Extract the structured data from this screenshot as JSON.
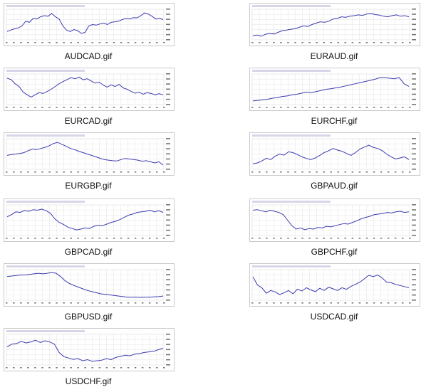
{
  "colors": {
    "line": "#3b3bb0",
    "grid": "#e3e3e3",
    "frame": "#c9c9c9",
    "axis_text": "#777777",
    "marker": "#2ea82e"
  },
  "thumbnails": [
    {
      "filename": "AUDCAD.gif",
      "series": [
        0.25,
        0.3,
        0.35,
        0.38,
        0.45,
        0.62,
        0.58,
        0.72,
        0.7,
        0.78,
        0.82,
        0.8,
        0.9,
        0.78,
        0.7,
        0.45,
        0.3,
        0.25,
        0.32,
        0.28,
        0.18,
        0.22,
        0.45,
        0.5,
        0.48,
        0.52,
        0.55,
        0.5,
        0.58,
        0.6,
        0.62,
        0.68,
        0.72,
        0.7,
        0.75,
        0.74,
        0.82,
        0.92,
        0.88,
        0.8,
        0.7,
        0.72,
        0.68
      ]
    },
    {
      "filename": "EURAUD.gif",
      "series": [
        0.1,
        0.12,
        0.08,
        0.15,
        0.18,
        0.16,
        0.22,
        0.28,
        0.3,
        0.33,
        0.35,
        0.4,
        0.45,
        0.43,
        0.5,
        0.55,
        0.6,
        0.58,
        0.62,
        0.7,
        0.72,
        0.78,
        0.76,
        0.8,
        0.82,
        0.85,
        0.83,
        0.88,
        0.9,
        0.86,
        0.84,
        0.8,
        0.78,
        0.82,
        0.85,
        0.8,
        0.82,
        0.78
      ]
    },
    {
      "filename": "EURCAD.gif",
      "series": [
        0.9,
        0.85,
        0.7,
        0.6,
        0.4,
        0.3,
        0.22,
        0.3,
        0.38,
        0.35,
        0.42,
        0.5,
        0.6,
        0.7,
        0.78,
        0.85,
        0.92,
        0.88,
        0.94,
        0.84,
        0.88,
        0.8,
        0.72,
        0.76,
        0.65,
        0.58,
        0.66,
        0.6,
        0.68,
        0.55,
        0.5,
        0.42,
        0.36,
        0.4,
        0.32,
        0.38,
        0.35,
        0.3,
        0.34,
        0.3
      ]
    },
    {
      "filename": "EURCHF.gif",
      "series": [
        0.08,
        0.1,
        0.12,
        0.14,
        0.18,
        0.2,
        0.24,
        0.26,
        0.3,
        0.32,
        0.36,
        0.4,
        0.38,
        0.42,
        0.46,
        0.5,
        0.52,
        0.55,
        0.58,
        0.62,
        0.66,
        0.7,
        0.74,
        0.78,
        0.82,
        0.86,
        0.92,
        0.92,
        0.9,
        0.88,
        0.92,
        0.7,
        0.6
      ]
    },
    {
      "filename": "EURGBP.gif",
      "series": [
        0.45,
        0.48,
        0.5,
        0.52,
        0.55,
        0.62,
        0.68,
        0.66,
        0.7,
        0.74,
        0.8,
        0.88,
        0.92,
        0.85,
        0.78,
        0.7,
        0.66,
        0.6,
        0.55,
        0.5,
        0.45,
        0.4,
        0.35,
        0.3,
        0.28,
        0.26,
        0.25,
        0.3,
        0.34,
        0.32,
        0.3,
        0.28,
        0.24,
        0.26,
        0.22,
        0.18,
        0.22,
        0.1
      ]
    },
    {
      "filename": "GBPAUD.gif",
      "series": [
        0.15,
        0.18,
        0.25,
        0.35,
        0.3,
        0.42,
        0.5,
        0.46,
        0.58,
        0.55,
        0.48,
        0.4,
        0.34,
        0.3,
        0.36,
        0.45,
        0.55,
        0.62,
        0.7,
        0.64,
        0.6,
        0.52,
        0.45,
        0.55,
        0.68,
        0.75,
        0.82,
        0.74,
        0.7,
        0.62,
        0.5,
        0.4,
        0.32,
        0.36,
        0.4,
        0.3
      ]
    },
    {
      "filename": "GBPCAD.gif",
      "series": [
        0.62,
        0.7,
        0.8,
        0.78,
        0.85,
        0.82,
        0.88,
        0.86,
        0.9,
        0.84,
        0.75,
        0.55,
        0.42,
        0.35,
        0.25,
        0.2,
        0.15,
        0.18,
        0.22,
        0.2,
        0.28,
        0.32,
        0.3,
        0.36,
        0.42,
        0.46,
        0.52,
        0.6,
        0.68,
        0.72,
        0.78,
        0.8,
        0.82,
        0.86,
        0.8,
        0.84,
        0.78
      ]
    },
    {
      "filename": "GBPCHF.gif",
      "series": [
        0.86,
        0.88,
        0.84,
        0.8,
        0.86,
        0.82,
        0.78,
        0.7,
        0.5,
        0.3,
        0.18,
        0.22,
        0.16,
        0.2,
        0.18,
        0.24,
        0.22,
        0.28,
        0.26,
        0.3,
        0.34,
        0.38,
        0.36,
        0.42,
        0.48,
        0.55,
        0.6,
        0.64,
        0.7,
        0.72,
        0.74,
        0.78,
        0.76,
        0.8,
        0.82,
        0.78,
        0.8
      ]
    },
    {
      "filename": "GBPUSD.gif",
      "series": [
        0.8,
        0.82,
        0.84,
        0.86,
        0.86,
        0.88,
        0.9,
        0.92,
        0.9,
        0.92,
        0.95,
        0.92,
        0.8,
        0.65,
        0.55,
        0.48,
        0.42,
        0.36,
        0.3,
        0.26,
        0.22,
        0.18,
        0.16,
        0.14,
        0.12,
        0.1,
        0.08,
        0.06,
        0.06,
        0.06,
        0.05,
        0.06,
        0.06,
        0.07,
        0.08,
        0.1
      ]
    },
    {
      "filename": "USDCAD.gif",
      "series": [
        0.8,
        0.5,
        0.4,
        0.2,
        0.3,
        0.25,
        0.15,
        0.22,
        0.3,
        0.18,
        0.35,
        0.28,
        0.4,
        0.32,
        0.26,
        0.38,
        0.3,
        0.42,
        0.36,
        0.3,
        0.4,
        0.34,
        0.45,
        0.52,
        0.6,
        0.72,
        0.85,
        0.8,
        0.86,
        0.75,
        0.6,
        0.58,
        0.52,
        0.48,
        0.44,
        0.4
      ]
    },
    {
      "filename": "USDCHF.gif",
      "series": [
        0.6,
        0.7,
        0.72,
        0.8,
        0.74,
        0.78,
        0.84,
        0.76,
        0.82,
        0.78,
        0.7,
        0.4,
        0.25,
        0.2,
        0.15,
        0.18,
        0.1,
        0.14,
        0.08,
        0.1,
        0.12,
        0.18,
        0.14,
        0.22,
        0.26,
        0.3,
        0.28,
        0.34,
        0.36,
        0.4,
        0.42,
        0.44,
        0.5,
        0.55
      ]
    }
  ]
}
